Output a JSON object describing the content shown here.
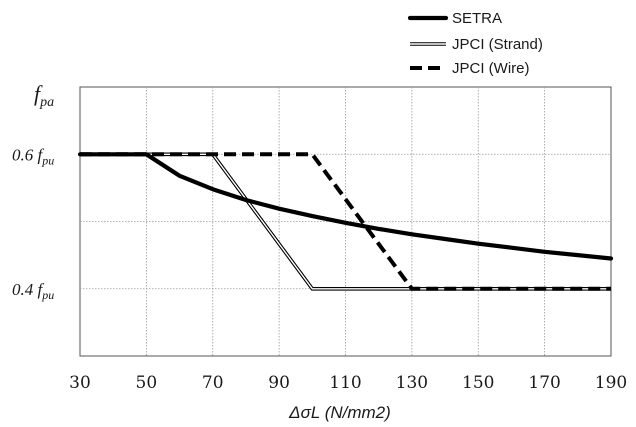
{
  "chart_data": {
    "type": "line",
    "xlabel": "ΔσL (N/mm2)",
    "ylabel": "f",
    "ylabel_sub": "pa",
    "x_ticks": [
      30,
      50,
      70,
      90,
      110,
      130,
      150,
      170,
      190
    ],
    "xlim": [
      30,
      190
    ],
    "ylim": [
      0.3,
      0.7
    ],
    "y_tick_labels": [
      {
        "value": 0.6,
        "main": "0.6 f",
        "sub": "pu"
      },
      {
        "value": 0.4,
        "main": "0.4 f",
        "sub": "pu"
      }
    ],
    "grid": true,
    "legend_position": "top-right",
    "series": [
      {
        "name": "SETRA",
        "style": "thick-solid",
        "color": "#000000",
        "x": [
          30,
          50,
          60,
          70,
          80,
          90,
          100,
          110,
          120,
          130,
          140,
          150,
          160,
          170,
          180,
          190
        ],
        "y": [
          0.6,
          0.6,
          0.568,
          0.548,
          0.532,
          0.519,
          0.508,
          0.498,
          0.489,
          0.481,
          0.474,
          0.467,
          0.461,
          0.455,
          0.45,
          0.445
        ]
      },
      {
        "name": "JPCI (Strand)",
        "style": "double-line",
        "color": "#000000",
        "x": [
          30,
          70,
          100,
          190
        ],
        "y": [
          0.6,
          0.6,
          0.4,
          0.4
        ]
      },
      {
        "name": "JPCI (Wire)",
        "style": "thick-dashed",
        "color": "#000000",
        "x": [
          30,
          100,
          130,
          190
        ],
        "y": [
          0.6,
          0.6,
          0.4,
          0.4
        ]
      }
    ]
  }
}
